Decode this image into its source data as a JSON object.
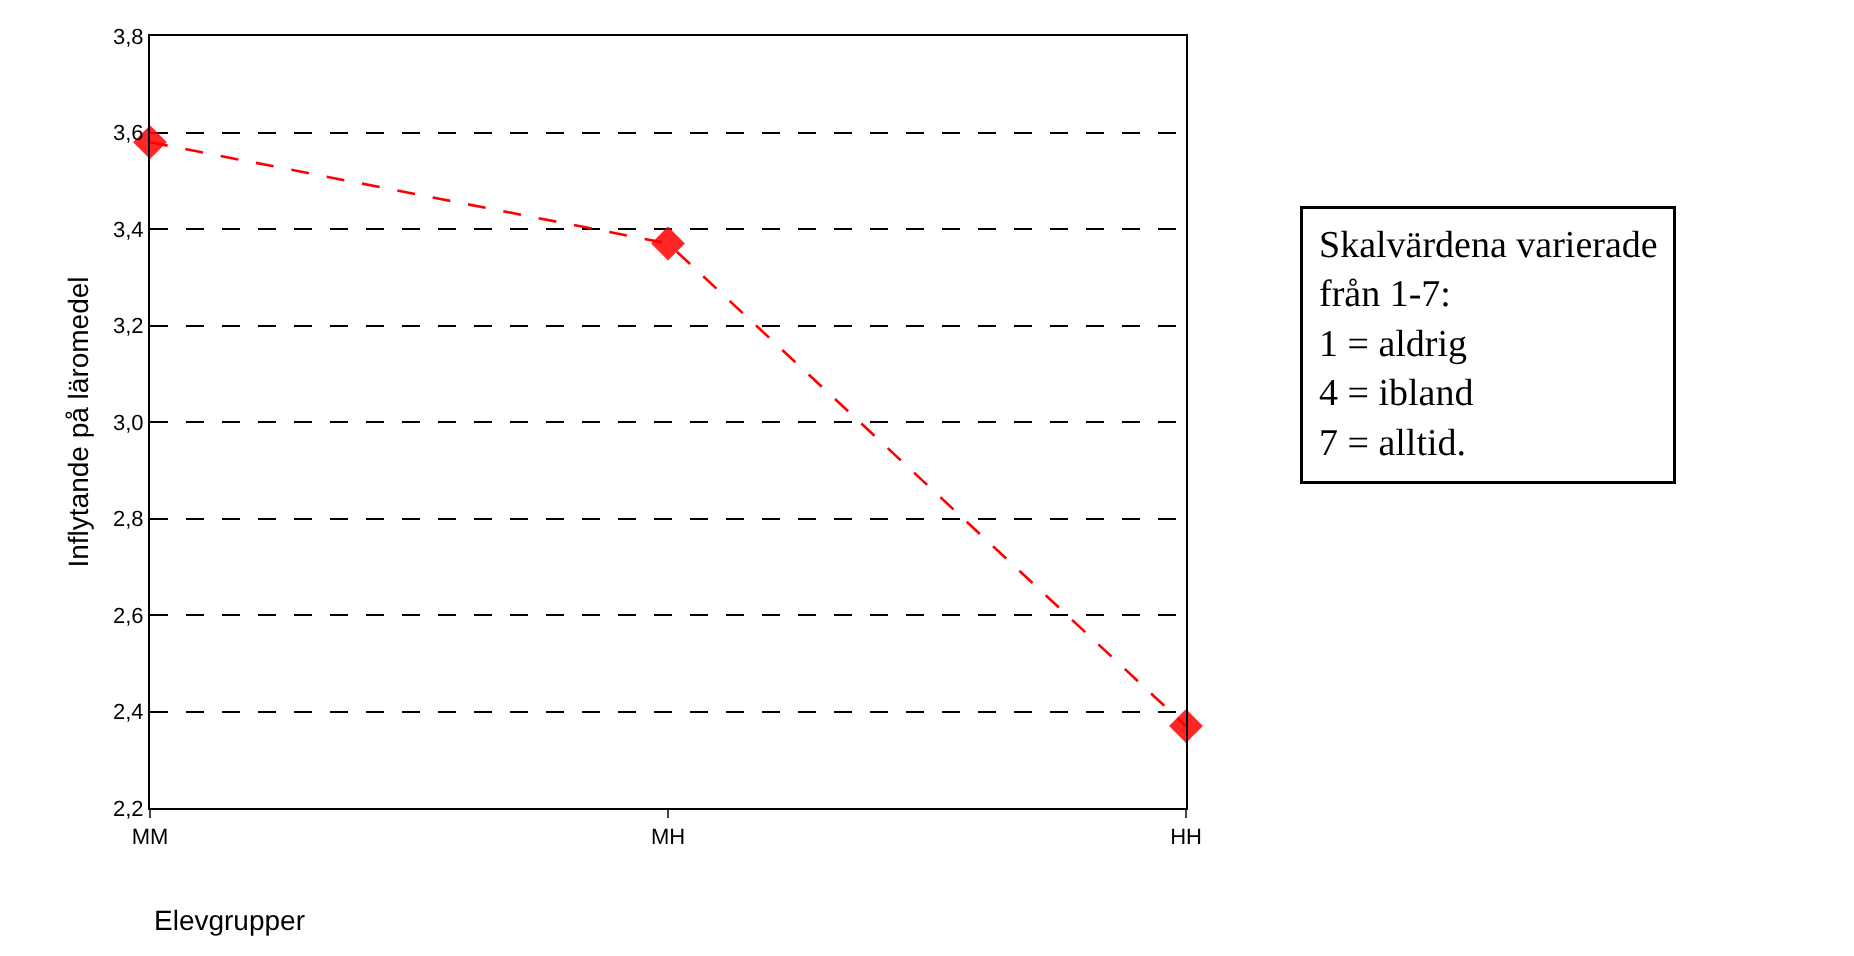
{
  "chart_data": {
    "type": "line",
    "xlabel": "Elevgrupper",
    "ylabel": "Inflytande på läromedel",
    "categories": [
      "MM",
      "MH",
      "HH"
    ],
    "series": [
      {
        "color": "#ff0000",
        "values": [
          3.58,
          3.37,
          2.37
        ]
      }
    ],
    "ylim": [
      2.2,
      3.8
    ],
    "yticks": [
      {
        "value": 2.2,
        "label": "2,2"
      },
      {
        "value": 2.4,
        "label": "2,4"
      },
      {
        "value": 2.6,
        "label": "2,6"
      },
      {
        "value": 2.8,
        "label": "2,8"
      },
      {
        "value": 3.0,
        "label": "3,0"
      },
      {
        "value": 3.2,
        "label": "3,2"
      },
      {
        "value": 3.4,
        "label": "3,4"
      },
      {
        "value": 3.6,
        "label": "3,6"
      },
      {
        "value": 3.8,
        "label": "3,8"
      }
    ],
    "grid": "y",
    "marker": "diamond",
    "line_style": "dashed",
    "annotations": [
      "Skalvärdena varierade\nfrån 1-7:\n1 = aldrig\n4 = ibland\n7 = alltid."
    ]
  }
}
